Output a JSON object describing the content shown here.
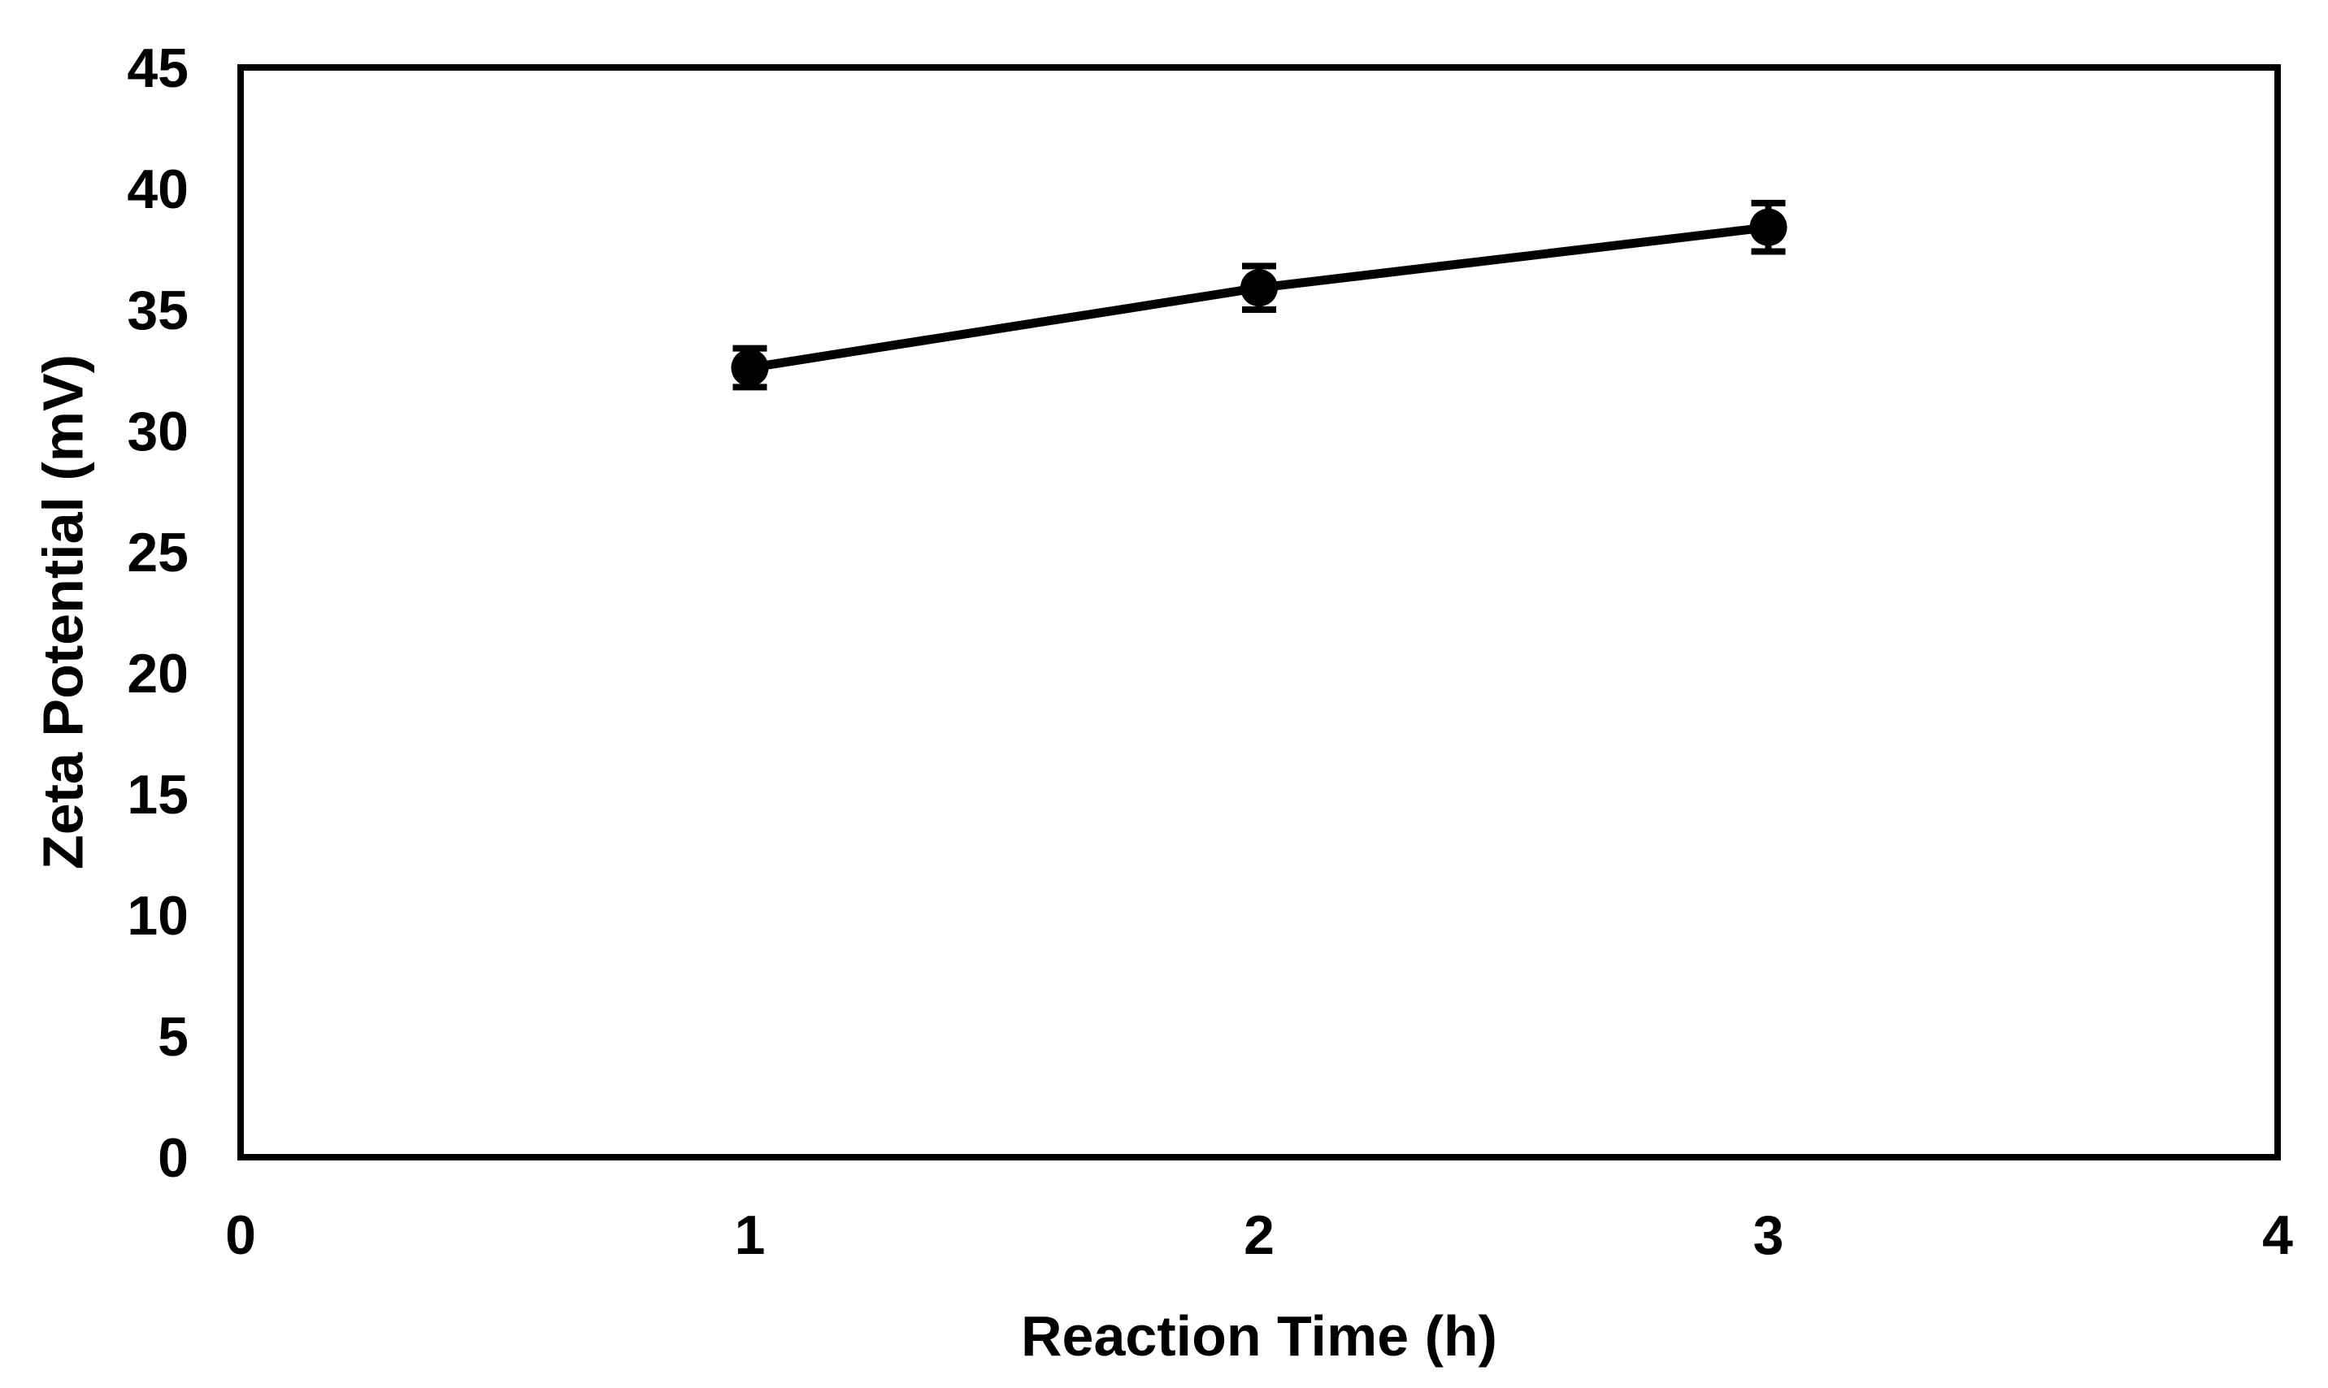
{
  "figure": {
    "background_color": "#ffffff"
  },
  "chart_data": {
    "type": "line",
    "title": "",
    "xlabel": "Reaction Time (h)",
    "ylabel": "Zeta Potential (mV)",
    "x": [
      1,
      2,
      3
    ],
    "y": [
      32.6,
      35.9,
      38.4
    ],
    "y_err": [
      0.8,
      0.9,
      1.0
    ],
    "xlim": [
      0,
      4
    ],
    "ylim": [
      0,
      45
    ],
    "x_ticks": [
      0,
      1,
      2,
      3,
      4
    ],
    "y_ticks": [
      0,
      5,
      10,
      15,
      20,
      25,
      30,
      35,
      40,
      45
    ],
    "grid": false,
    "legend": false,
    "marker": "filled-circle",
    "line_color": "#000000",
    "marker_color": "#000000",
    "error_bar_color": "#000000",
    "axis_color": "#000000",
    "text_color": "#000000"
  }
}
